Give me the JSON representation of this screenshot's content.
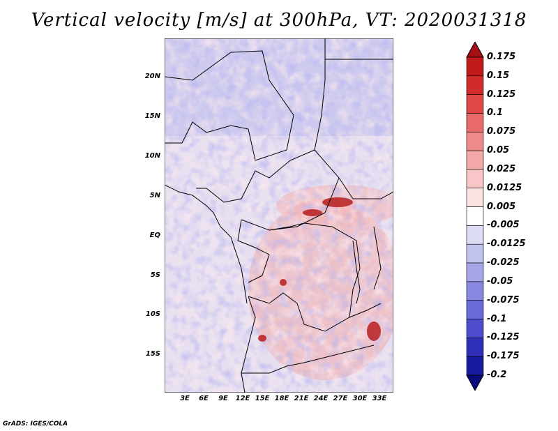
{
  "title": "Vertical velocity [m/s] at 300hPa, VT: 2020031318",
  "credit": "GrADS: IGES/COLA",
  "map": {
    "lat_labels": [
      "20N",
      "15N",
      "10N",
      "5N",
      "EQ",
      "5S",
      "10S",
      "15S"
    ],
    "lon_labels": [
      "3E",
      "6E",
      "9E",
      "12E",
      "15E",
      "18E",
      "21E",
      "24E",
      "27E",
      "30E",
      "33E"
    ]
  },
  "colorbar": {
    "labels": [
      "0.175",
      "0.15",
      "0.125",
      "0.1",
      "0.075",
      "0.05",
      "0.025",
      "0.0125",
      "0.005",
      "-0.005",
      "-0.0125",
      "-0.025",
      "-0.05",
      "-0.075",
      "-0.1",
      "-0.125",
      "-0.175",
      "-0.2"
    ],
    "colors": [
      "#a50f15",
      "#c01a1a",
      "#d22b2b",
      "#e04848",
      "#e86a6a",
      "#ef8a8a",
      "#f4a8a8",
      "#f8c6c6",
      "#fbe2e2",
      "#ffffff",
      "#dcdcf5",
      "#c2c2ef",
      "#a6a6e8",
      "#8888e0",
      "#6a6ad8",
      "#4c4ccc",
      "#2e2eb8",
      "#1a1aa0",
      "#0a0a80"
    ]
  }
}
